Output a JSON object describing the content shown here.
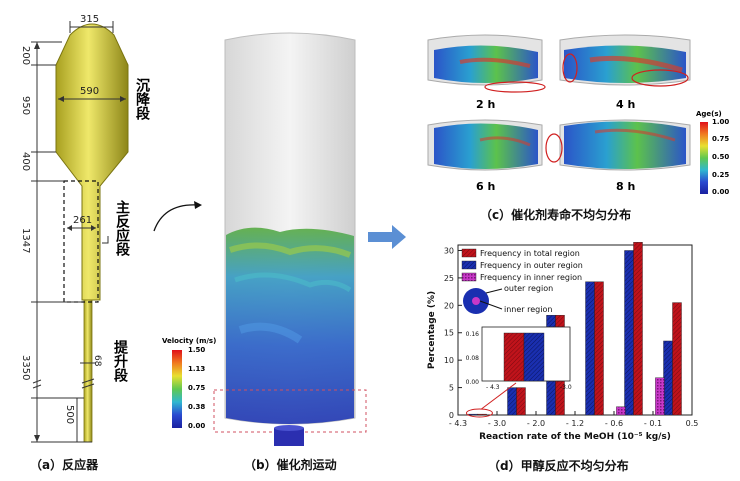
{
  "panel_a": {
    "caption": "（a）反应器",
    "dims": {
      "top_width": "315",
      "top_height": "200",
      "wide_height": "950",
      "wide_width": "590",
      "cone_height": "400",
      "main_height": "1347",
      "main_width": "261",
      "riser_height": "3350",
      "bottom_height": "500",
      "riser_width": "68"
    },
    "zones": {
      "settling": "沉降段",
      "main": "主反应段",
      "riser": "提升段"
    }
  },
  "panel_b": {
    "caption": "（b）催化剂运动",
    "colorbar_title": "Velocity (m/s)",
    "colorbar_ticks": [
      "1.50",
      "1.13",
      "0.75",
      "0.38",
      "0.00"
    ]
  },
  "panel_c": {
    "caption": "（c）催化剂寿命不均匀分布",
    "times": [
      "2 h",
      "4 h",
      "6 h",
      "8 h"
    ],
    "colorbar_title": "Age(s)",
    "colorbar_ticks": [
      "1.00",
      "0.75",
      "0.50",
      "0.25",
      "0.00"
    ]
  },
  "panel_d": {
    "caption": "（d）甲醇反应不均匀分布",
    "inset_labels": {
      "outer": "outer region",
      "inner": "inner region"
    },
    "inset2_yticks": [
      "0.16",
      "0.08",
      "0.00"
    ],
    "inset2_xticks": [
      "- 4.3",
      "-3.0"
    ],
    "chart_data": {
      "type": "bar",
      "xlabel": "Reaction rate of the MeOH (10⁻⁵ kg/s)",
      "ylabel": "Percentage (%)",
      "ylim": [
        0,
        31
      ],
      "xticks": [
        "- 4.3",
        "- 3.0",
        "- 2.0",
        "- 1.2",
        "- 0.6",
        "- 0.1",
        "0.5"
      ],
      "yticks": [
        "0",
        "5",
        "10",
        "15",
        "20",
        "25",
        "30"
      ],
      "series": [
        {
          "name": "Frequency in total region",
          "color": "#c0131b",
          "values": [
            0.16,
            5.0,
            18.2,
            24.3,
            31.5,
            20.5
          ]
        },
        {
          "name": "Frequency in outer region",
          "color": "#1a2fb0",
          "values": [
            0.16,
            5.0,
            18.2,
            24.3,
            30.0,
            13.5
          ]
        },
        {
          "name": "Frequency in inner region",
          "color": "#c838c8",
          "values": [
            0,
            0,
            0,
            0,
            1.5,
            6.8
          ]
        }
      ]
    }
  }
}
